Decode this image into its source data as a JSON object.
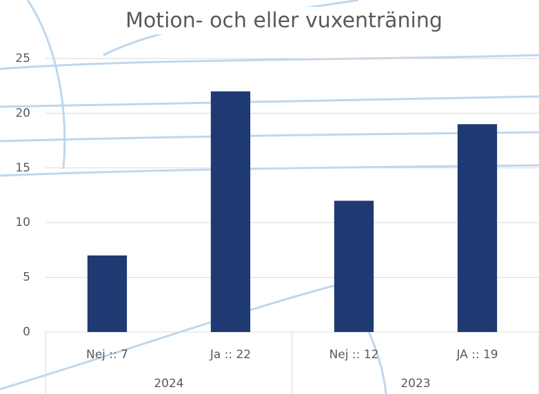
{
  "chart_data": {
    "type": "bar",
    "title": "Motion- och eller vuxenträning",
    "categories": [
      "Nej :: 7",
      "Ja :: 22",
      "Nej :: 12",
      "JA :: 19"
    ],
    "groups": [
      "2024",
      "2023"
    ],
    "values": [
      7,
      22,
      12,
      19
    ],
    "color": "#1f3a73",
    "ylim": [
      0,
      25
    ],
    "yticks": [
      0,
      5,
      10,
      15,
      20,
      25
    ],
    "grid": true
  }
}
